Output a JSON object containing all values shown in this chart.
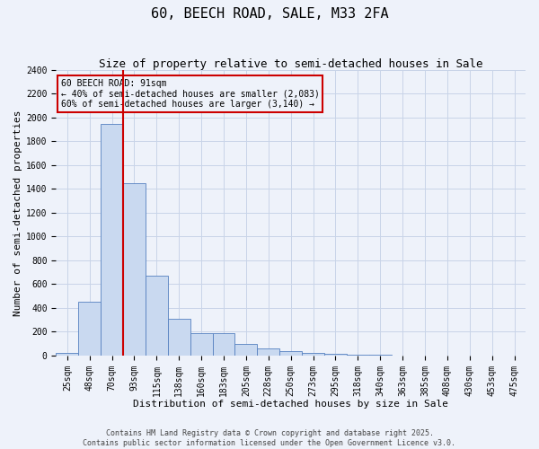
{
  "title": "60, BEECH ROAD, SALE, M33 2FA",
  "subtitle": "Size of property relative to semi-detached houses in Sale",
  "xlabel": "Distribution of semi-detached houses by size in Sale",
  "ylabel": "Number of semi-detached properties",
  "categories": [
    "25sqm",
    "48sqm",
    "70sqm",
    "93sqm",
    "115sqm",
    "138sqm",
    "160sqm",
    "183sqm",
    "205sqm",
    "228sqm",
    "250sqm",
    "273sqm",
    "295sqm",
    "318sqm",
    "340sqm",
    "363sqm",
    "385sqm",
    "408sqm",
    "430sqm",
    "453sqm",
    "475sqm"
  ],
  "values": [
    20,
    450,
    1950,
    1450,
    670,
    305,
    185,
    185,
    95,
    60,
    35,
    20,
    15,
    5,
    5,
    2,
    2,
    1,
    0,
    0,
    0
  ],
  "bar_color": "#c9d9f0",
  "bar_edge_color": "#5580c0",
  "grid_color": "#c8d4e8",
  "background_color": "#eef2fa",
  "vline_color": "#cc0000",
  "vline_index": 2.5,
  "annotation_text": "60 BEECH ROAD: 91sqm\n← 40% of semi-detached houses are smaller (2,083)\n60% of semi-detached houses are larger (3,140) →",
  "annotation_box_color": "#cc0000",
  "ylim": [
    0,
    2400
  ],
  "yticks": [
    0,
    200,
    400,
    600,
    800,
    1000,
    1200,
    1400,
    1600,
    1800,
    2000,
    2200,
    2400
  ],
  "footer_text": "Contains HM Land Registry data © Crown copyright and database right 2025.\nContains public sector information licensed under the Open Government Licence v3.0.",
  "title_fontsize": 11,
  "subtitle_fontsize": 9,
  "axis_label_fontsize": 8,
  "tick_fontsize": 7,
  "annotation_fontsize": 7,
  "footer_fontsize": 6
}
